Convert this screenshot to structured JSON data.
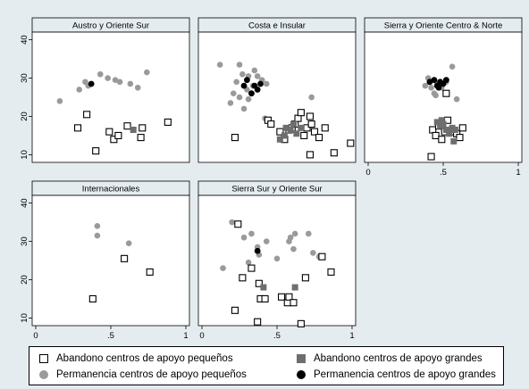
{
  "chart_data": {
    "type": "scatter",
    "xlim": [
      0,
      1
    ],
    "ylim": [
      8,
      42
    ],
    "xticks": [
      0,
      0.5,
      1
    ],
    "xticklabels": [
      "0",
      ".5",
      "1"
    ],
    "yticks": [
      10,
      20,
      30,
      40
    ],
    "yticklabels": [
      "10",
      "20",
      "30",
      "40"
    ],
    "grid": false,
    "legend_position": "bottom",
    "legend": [
      {
        "key": "ab_small",
        "label": "Abandono centros de apoyo pequeños",
        "color": "#000000",
        "marker": "square-hollow"
      },
      {
        "key": "ab_large",
        "label": "Abandono centros de apoyo grandes",
        "color": "#6e6e6e",
        "marker": "square-filled"
      },
      {
        "key": "pe_small",
        "label": "Permanencia centros de apoyo pequeños",
        "color": "#9a9a9a",
        "marker": "circle-gray"
      },
      {
        "key": "pe_large",
        "label": "Permanencia centros de apoyo grandes",
        "color": "#000000",
        "marker": "circle-black"
      }
    ],
    "panels": [
      {
        "title": "Austro y Oriente Sur",
        "series": {
          "ab_small": [
            [
              0.28,
              17
            ],
            [
              0.34,
              20.5
            ],
            [
              0.4,
              11
            ],
            [
              0.49,
              16
            ],
            [
              0.52,
              14
            ],
            [
              0.55,
              15
            ],
            [
              0.61,
              17.5
            ],
            [
              0.7,
              14.5
            ],
            [
              0.71,
              17
            ],
            [
              0.88,
              18.5
            ]
          ],
          "ab_large": [
            [
              0.65,
              16.5
            ]
          ],
          "pe_small": [
            [
              0.16,
              24
            ],
            [
              0.29,
              27
            ],
            [
              0.33,
              29
            ],
            [
              0.35,
              28
            ],
            [
              0.43,
              31
            ],
            [
              0.48,
              30
            ],
            [
              0.53,
              29.5
            ],
            [
              0.56,
              29
            ],
            [
              0.63,
              28.5
            ],
            [
              0.68,
              27.5
            ],
            [
              0.74,
              31.5
            ]
          ],
          "pe_large": [
            [
              0.37,
              28.5
            ]
          ]
        }
      },
      {
        "title": "Costa e Insular",
        "series": {
          "ab_small": [
            [
              0.22,
              14.5
            ],
            [
              0.44,
              19
            ],
            [
              0.46,
              18
            ],
            [
              0.52,
              16
            ],
            [
              0.55,
              14
            ],
            [
              0.58,
              16.5
            ],
            [
              0.6,
              17
            ],
            [
              0.62,
              18
            ],
            [
              0.64,
              19.5
            ],
            [
              0.66,
              21
            ],
            [
              0.68,
              15
            ],
            [
              0.7,
              17
            ],
            [
              0.72,
              20
            ],
            [
              0.73,
              18
            ],
            [
              0.75,
              16
            ],
            [
              0.72,
              10
            ],
            [
              0.78,
              14.5
            ],
            [
              0.82,
              17
            ],
            [
              0.88,
              10.5
            ],
            [
              0.99,
              13
            ]
          ],
          "ab_large": [
            [
              0.52,
              14
            ],
            [
              0.55,
              15
            ],
            [
              0.56,
              17
            ],
            [
              0.59,
              16.5
            ],
            [
              0.61,
              18
            ],
            [
              0.63,
              15.5
            ],
            [
              0.66,
              17
            ]
          ],
          "pe_small": [
            [
              0.12,
              33.5
            ],
            [
              0.19,
              23.5
            ],
            [
              0.21,
              26
            ],
            [
              0.23,
              29
            ],
            [
              0.25,
              33.5
            ],
            [
              0.25,
              25
            ],
            [
              0.27,
              31
            ],
            [
              0.3,
              27
            ],
            [
              0.31,
              30.5
            ],
            [
              0.34,
              28
            ],
            [
              0.35,
              32
            ],
            [
              0.37,
              30.5
            ],
            [
              0.4,
              29.5
            ],
            [
              0.43,
              28.5
            ],
            [
              0.42,
              19.5
            ],
            [
              0.28,
              22
            ],
            [
              0.31,
              24.5
            ],
            [
              0.73,
              25
            ]
          ],
          "pe_large": [
            [
              0.28,
              28
            ],
            [
              0.3,
              29.5
            ],
            [
              0.33,
              26
            ],
            [
              0.35,
              28
            ],
            [
              0.37,
              27
            ],
            [
              0.39,
              28.5
            ]
          ]
        }
      },
      {
        "title": "Sierra y Oriente Centro & Norte",
        "series": {
          "ab_small": [
            [
              0.42,
              9.5
            ],
            [
              0.43,
              16.5
            ],
            [
              0.45,
              15
            ],
            [
              0.47,
              17.5
            ],
            [
              0.49,
              14
            ],
            [
              0.51,
              16
            ],
            [
              0.52,
              26
            ],
            [
              0.53,
              19
            ],
            [
              0.56,
              16
            ],
            [
              0.59,
              15.5
            ],
            [
              0.61,
              14.5
            ],
            [
              0.63,
              17
            ]
          ],
          "ab_large": [
            [
              0.46,
              18.5
            ],
            [
              0.48,
              17.5
            ],
            [
              0.5,
              18
            ],
            [
              0.52,
              16.5
            ],
            [
              0.54,
              15.5
            ],
            [
              0.56,
              17
            ],
            [
              0.57,
              13.5
            ],
            [
              0.58,
              16.5
            ],
            [
              0.49,
              19
            ]
          ],
          "pe_small": [
            [
              0.38,
              28
            ],
            [
              0.4,
              30
            ],
            [
              0.42,
              27.5
            ],
            [
              0.44,
              26
            ],
            [
              0.46,
              28.5
            ],
            [
              0.49,
              27.5
            ],
            [
              0.52,
              29
            ],
            [
              0.56,
              33
            ],
            [
              0.59,
              24.5
            ],
            [
              0.45,
              25.5
            ]
          ],
          "pe_large": [
            [
              0.41,
              29
            ],
            [
              0.44,
              29.5
            ],
            [
              0.46,
              28
            ],
            [
              0.48,
              29
            ],
            [
              0.5,
              28.5
            ],
            [
              0.52,
              29.5
            ],
            [
              0.47,
              27.5
            ]
          ]
        }
      },
      {
        "title": "Internacionales",
        "series": {
          "ab_small": [
            [
              0.38,
              15
            ],
            [
              0.59,
              25.5
            ],
            [
              0.76,
              22
            ]
          ],
          "ab_large": [],
          "pe_small": [
            [
              0.41,
              34
            ],
            [
              0.41,
              31.5
            ],
            [
              0.62,
              29.5
            ]
          ],
          "pe_large": []
        }
      },
      {
        "title": "Sierra Sur y Oriente Sur",
        "series": {
          "ab_small": [
            [
              0.22,
              12
            ],
            [
              0.24,
              34.5
            ],
            [
              0.27,
              20.5
            ],
            [
              0.33,
              23
            ],
            [
              0.37,
              9
            ],
            [
              0.38,
              19
            ],
            [
              0.39,
              15
            ],
            [
              0.42,
              15
            ],
            [
              0.53,
              15.5
            ],
            [
              0.57,
              14
            ],
            [
              0.58,
              15.5
            ],
            [
              0.61,
              14
            ],
            [
              0.66,
              8.5
            ],
            [
              0.69,
              20.5
            ],
            [
              0.8,
              26
            ],
            [
              0.86,
              22
            ]
          ],
          "ab_large": [
            [
              0.41,
              18
            ],
            [
              0.62,
              18
            ]
          ],
          "pe_small": [
            [
              0.14,
              23
            ],
            [
              0.2,
              35
            ],
            [
              0.28,
              31
            ],
            [
              0.31,
              24.5
            ],
            [
              0.33,
              32
            ],
            [
              0.37,
              28.5
            ],
            [
              0.38,
              26.5
            ],
            [
              0.43,
              30
            ],
            [
              0.5,
              25.5
            ],
            [
              0.58,
              30
            ],
            [
              0.59,
              31
            ],
            [
              0.61,
              28
            ],
            [
              0.62,
              32
            ],
            [
              0.71,
              32
            ],
            [
              0.74,
              27
            ],
            [
              0.78,
              26
            ],
            [
              0.41,
              18
            ]
          ],
          "pe_large": [
            [
              0.37,
              27.5
            ]
          ]
        }
      }
    ]
  },
  "colors": {
    "page_background": "#e5ecf0",
    "panel_background": "#ffffff",
    "title_strip": "#e5ecf0"
  }
}
